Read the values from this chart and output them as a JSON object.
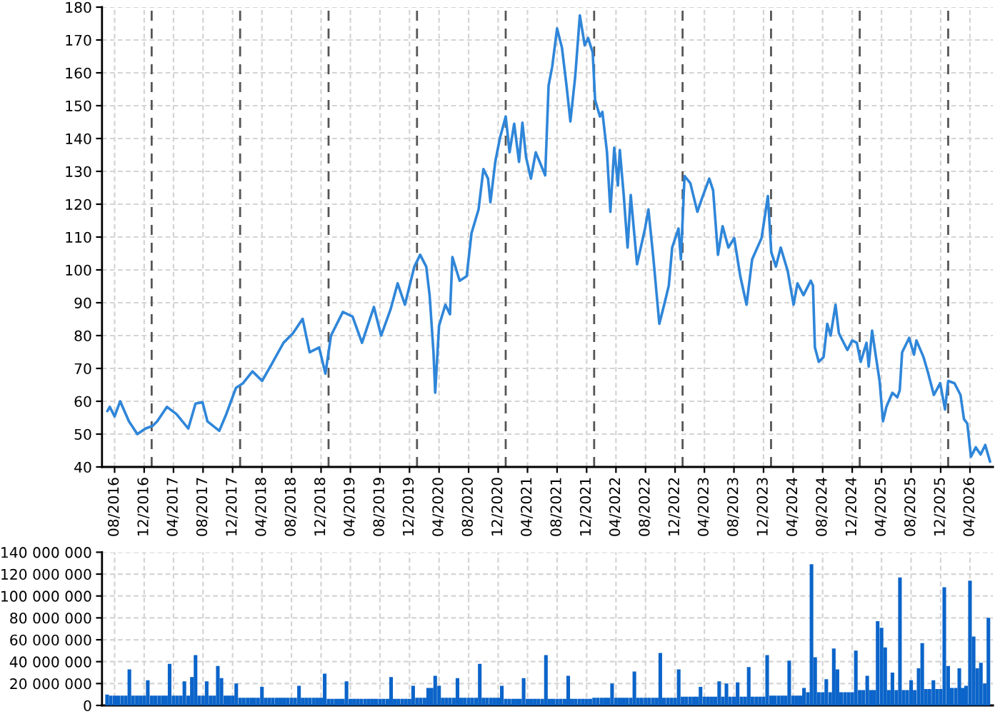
{
  "chart_data": [
    {
      "type": "line",
      "x": [
        "2016-07-02",
        "2016-07-12",
        "2016-08-01",
        "2016-08-24",
        "2016-09-29",
        "2016-11-03",
        "2016-12-06",
        "2017-01-05",
        "2017-01-24",
        "2017-03-05",
        "2017-04-13",
        "2017-06-01",
        "2017-07-01",
        "2017-07-30",
        "2017-08-19",
        "2017-10-07",
        "2017-11-05",
        "2017-12-15",
        "2018-01-13",
        "2018-02-21",
        "2018-04-02",
        "2018-05-11",
        "2018-06-29",
        "2018-08-07",
        "2018-09-16",
        "2018-10-15",
        "2018-11-23",
        "2018-12-19",
        "2019-01-11",
        "2019-03-01",
        "2019-04-10",
        "2019-05-19",
        "2019-07-07",
        "2019-08-06",
        "2019-09-14",
        "2019-10-13",
        "2019-11-12",
        "2019-12-21",
        "2020-01-14",
        "2020-02-08",
        "2020-02-22",
        "2020-03-09",
        "2020-03-16",
        "2020-04-01",
        "2020-04-27",
        "2020-05-16",
        "2020-05-26",
        "2020-06-25",
        "2020-07-24",
        "2020-08-13",
        "2020-09-11",
        "2020-10-01",
        "2020-10-20",
        "2020-10-30",
        "2020-11-19",
        "2020-12-08",
        "2021-01-01",
        "2021-01-17",
        "2021-02-05",
        "2021-02-25",
        "2021-03-11",
        "2021-03-26",
        "2021-04-15",
        "2021-05-05",
        "2021-06-13",
        "2021-06-27",
        "2021-07-12",
        "2021-08-01",
        "2021-08-21",
        "2021-09-09",
        "2021-09-25",
        "2021-10-15",
        "2021-11-03",
        "2021-11-23",
        "2021-12-07",
        "2021-12-26",
        "2022-01-05",
        "2022-01-25",
        "2022-02-04",
        "2022-02-23",
        "2022-03-09",
        "2022-03-25",
        "2022-04-09",
        "2022-04-17",
        "2022-05-03",
        "2022-05-19",
        "2022-06-01",
        "2022-06-27",
        "2022-07-30",
        "2022-08-13",
        "2022-09-02",
        "2022-09-27",
        "2022-10-17",
        "2022-11-05",
        "2022-11-19",
        "2022-12-15",
        "2022-12-25",
        "2023-01-09",
        "2023-02-02",
        "2023-03-03",
        "2023-03-23",
        "2023-04-21",
        "2023-05-07",
        "2023-05-27",
        "2023-06-15",
        "2023-07-09",
        "2023-08-02",
        "2023-08-27",
        "2023-09-22",
        "2023-10-15",
        "2023-11-23",
        "2023-12-19",
        "2024-01-02",
        "2024-01-21",
        "2024-02-10",
        "2024-03-10",
        "2024-04-03",
        "2024-04-19",
        "2024-05-14",
        "2024-06-13",
        "2024-06-22",
        "2024-06-30",
        "2024-07-16",
        "2024-08-05",
        "2024-08-20",
        "2024-09-03",
        "2024-09-23",
        "2024-10-07",
        "2024-11-11",
        "2024-12-01",
        "2024-12-20",
        "2025-01-05",
        "2025-01-29",
        "2025-02-07",
        "2025-02-21",
        "2025-03-09",
        "2025-03-24",
        "2025-04-07",
        "2025-04-21",
        "2025-05-16",
        "2025-06-05",
        "2025-06-15",
        "2025-06-25",
        "2025-07-24",
        "2025-08-13",
        "2025-08-23",
        "2025-09-21",
        "2025-10-11",
        "2025-11-03",
        "2025-11-29",
        "2025-12-19",
        "2026-01-01",
        "2026-01-27",
        "2026-02-21",
        "2026-03-07",
        "2026-03-21",
        "2026-04-05",
        "2026-04-25",
        "2026-05-15",
        "2026-06-03",
        "2026-06-23"
      ],
      "series": [
        {
          "color": "#2f86d9",
          "values": [
            57,
            58.3,
            55.4,
            60,
            53.9,
            50,
            51.7,
            52.5,
            53.9,
            58.3,
            56.1,
            51.7,
            59.3,
            59.7,
            53.9,
            51,
            56.1,
            64.1,
            65.5,
            69.1,
            66.2,
            71.3,
            77.8,
            80.7,
            85.1,
            74.9,
            76.4,
            68.4,
            80,
            87.2,
            85.8,
            77.8,
            88.7,
            80,
            88,
            95.9,
            89.4,
            101,
            104.6,
            101,
            92.3,
            74.9,
            62.6,
            83,
            89.4,
            86.5,
            103.9,
            96.7,
            98.1,
            111.2,
            118.4,
            130.7,
            127.8,
            120.6,
            132.9,
            140.1,
            146.7,
            135.8,
            144.5,
            132.9,
            144.8,
            134.3,
            127.8,
            135.8,
            128.8,
            156.1,
            161.9,
            173.5,
            167.7,
            156.1,
            145.2,
            159,
            177.5,
            168.4,
            170.6,
            166.2,
            151.7,
            146.7,
            148.1,
            135.8,
            117.7,
            137.2,
            125.7,
            136.5,
            122.8,
            106.8,
            122.8,
            101.7,
            112.6,
            118.4,
            103.9,
            83.6,
            89.4,
            95.2,
            106.8,
            112.6,
            103.2,
            128.6,
            126.4,
            117.7,
            122,
            127.8,
            124.2,
            104.6,
            113.3,
            106.8,
            109.7,
            98.1,
            89.4,
            103.2,
            109.7,
            122.5,
            105.4,
            101,
            106.8,
            99.6,
            89.4,
            95.9,
            92.3,
            96.7,
            95.2,
            76.4,
            72,
            73.5,
            83.6,
            80,
            89.4,
            80.7,
            75.6,
            78.5,
            77.8,
            72,
            77.8,
            70.6,
            81.5,
            73.5,
            66.2,
            53.9,
            58.3,
            62.6,
            61.2,
            63.3,
            74.9,
            79.3,
            74.2,
            78.5,
            73.5,
            68.4,
            61.9,
            65.5,
            57.5,
            66.2,
            65.5,
            61.9,
            54.6,
            53.2,
            43.1,
            46,
            43.8,
            46.7,
            41.6
          ]
        }
      ],
      "xlim": [
        "2016-06-10",
        "2026-07-05"
      ],
      "xticks": [
        {
          "value": "2016-08-01",
          "label": "08/2016"
        },
        {
          "value": "2016-12-01",
          "label": "12/2016"
        },
        {
          "value": "2017-04-01",
          "label": "04/2017"
        },
        {
          "value": "2017-08-01",
          "label": "08/2017"
        },
        {
          "value": "2017-12-01",
          "label": "12/2017"
        },
        {
          "value": "2018-04-01",
          "label": "04/2018"
        },
        {
          "value": "2018-08-01",
          "label": "08/2018"
        },
        {
          "value": "2018-12-01",
          "label": "12/2018"
        },
        {
          "value": "2019-04-01",
          "label": "04/2019"
        },
        {
          "value": "2019-08-01",
          "label": "08/2019"
        },
        {
          "value": "2019-12-01",
          "label": "12/2019"
        },
        {
          "value": "2020-04-01",
          "label": "04/2020"
        },
        {
          "value": "2020-08-01",
          "label": "08/2020"
        },
        {
          "value": "2020-12-01",
          "label": "12/2020"
        },
        {
          "value": "2021-04-01",
          "label": "04/2021"
        },
        {
          "value": "2021-08-01",
          "label": "08/2021"
        },
        {
          "value": "2021-12-01",
          "label": "12/2021"
        },
        {
          "value": "2022-04-01",
          "label": "04/2022"
        },
        {
          "value": "2022-08-01",
          "label": "08/2022"
        },
        {
          "value": "2022-12-01",
          "label": "12/2022"
        },
        {
          "value": "2023-04-01",
          "label": "04/2023"
        },
        {
          "value": "2023-08-01",
          "label": "08/2023"
        },
        {
          "value": "2023-12-01",
          "label": "12/2023"
        },
        {
          "value": "2024-04-01",
          "label": "04/2024"
        },
        {
          "value": "2024-08-01",
          "label": "08/2024"
        },
        {
          "value": "2024-12-01",
          "label": "12/2024"
        },
        {
          "value": "2025-04-01",
          "label": "04/2025"
        },
        {
          "value": "2025-08-01",
          "label": "08/2025"
        },
        {
          "value": "2025-12-01",
          "label": "12/2025"
        },
        {
          "value": "2026-04-01",
          "label": "04/2026"
        }
      ],
      "ylim": [
        40,
        180
      ],
      "yticks": [
        40,
        50,
        60,
        70,
        80,
        90,
        100,
        110,
        120,
        130,
        140,
        150,
        160,
        170,
        180
      ],
      "grid": true,
      "ref_lines": [
        {
          "axis": "x",
          "value": "2017-01-01",
          "color": "#555555",
          "line_style": "dashed"
        },
        {
          "axis": "x",
          "value": "2018-01-01",
          "color": "#555555",
          "line_style": "dashed"
        },
        {
          "axis": "x",
          "value": "2019-01-01",
          "color": "#555555",
          "line_style": "dashed"
        },
        {
          "axis": "x",
          "value": "2020-01-01",
          "color": "#555555",
          "line_style": "dashed"
        },
        {
          "axis": "x",
          "value": "2021-01-01",
          "color": "#555555",
          "line_style": "dashed"
        },
        {
          "axis": "x",
          "value": "2022-01-01",
          "color": "#555555",
          "line_style": "dashed"
        },
        {
          "axis": "x",
          "value": "2023-01-01",
          "color": "#555555",
          "line_style": "dashed"
        },
        {
          "axis": "x",
          "value": "2024-01-01",
          "color": "#555555",
          "line_style": "dashed"
        },
        {
          "axis": "x",
          "value": "2025-01-01",
          "color": "#555555",
          "line_style": "dashed"
        },
        {
          "axis": "x",
          "value": "2026-01-01",
          "color": "#555555",
          "line_style": "dashed"
        }
      ]
    },
    {
      "type": "bar",
      "x": [
        "2016-07-01",
        "2016-07-16",
        "2016-08-01",
        "2016-08-16",
        "2016-09-01",
        "2016-09-16",
        "2016-10-01",
        "2016-10-16",
        "2016-11-01",
        "2016-11-16",
        "2016-12-01",
        "2016-12-16",
        "2017-01-01",
        "2017-01-16",
        "2017-02-01",
        "2017-02-16",
        "2017-03-01",
        "2017-03-16",
        "2017-04-01",
        "2017-04-16",
        "2017-05-01",
        "2017-05-16",
        "2017-06-01",
        "2017-06-16",
        "2017-07-01",
        "2017-07-16",
        "2017-08-01",
        "2017-08-16",
        "2017-09-01",
        "2017-09-16",
        "2017-10-01",
        "2017-10-16",
        "2017-11-01",
        "2017-11-16",
        "2017-12-01",
        "2017-12-16",
        "2018-01-01",
        "2018-01-16",
        "2018-02-01",
        "2018-02-16",
        "2018-03-01",
        "2018-03-16",
        "2018-04-01",
        "2018-04-16",
        "2018-05-01",
        "2018-05-16",
        "2018-06-01",
        "2018-06-16",
        "2018-07-01",
        "2018-07-16",
        "2018-08-01",
        "2018-08-16",
        "2018-09-01",
        "2018-09-16",
        "2018-10-01",
        "2018-10-16",
        "2018-11-01",
        "2018-11-16",
        "2018-12-01",
        "2018-12-16",
        "2019-01-01",
        "2019-01-16",
        "2019-02-01",
        "2019-02-16",
        "2019-03-01",
        "2019-03-16",
        "2019-04-01",
        "2019-04-16",
        "2019-05-01",
        "2019-05-16",
        "2019-06-01",
        "2019-06-16",
        "2019-07-01",
        "2019-07-16",
        "2019-08-01",
        "2019-08-16",
        "2019-09-01",
        "2019-09-16",
        "2019-10-01",
        "2019-10-16",
        "2019-11-01",
        "2019-11-16",
        "2019-12-01",
        "2019-12-16",
        "2020-01-01",
        "2020-01-16",
        "2020-02-01",
        "2020-02-16",
        "2020-03-01",
        "2020-03-16",
        "2020-04-01",
        "2020-04-16",
        "2020-05-01",
        "2020-05-16",
        "2020-06-01",
        "2020-06-16",
        "2020-07-01",
        "2020-07-16",
        "2020-08-01",
        "2020-08-16",
        "2020-09-01",
        "2020-09-16",
        "2020-10-01",
        "2020-10-16",
        "2020-11-01",
        "2020-11-16",
        "2020-12-01",
        "2020-12-16",
        "2021-01-01",
        "2021-01-16",
        "2021-02-01",
        "2021-02-16",
        "2021-03-01",
        "2021-03-16",
        "2021-04-01",
        "2021-04-16",
        "2021-05-01",
        "2021-05-16",
        "2021-06-01",
        "2021-06-16",
        "2021-07-01",
        "2021-07-16",
        "2021-08-01",
        "2021-08-16",
        "2021-09-01",
        "2021-09-16",
        "2021-10-01",
        "2021-10-16",
        "2021-11-01",
        "2021-11-16",
        "2021-12-01",
        "2021-12-16",
        "2022-01-01",
        "2022-01-16",
        "2022-02-01",
        "2022-02-16",
        "2022-03-01",
        "2022-03-16",
        "2022-04-01",
        "2022-04-16",
        "2022-05-01",
        "2022-05-16",
        "2022-06-01",
        "2022-06-16",
        "2022-07-01",
        "2022-07-16",
        "2022-08-01",
        "2022-08-16",
        "2022-09-01",
        "2022-09-16",
        "2022-10-01",
        "2022-10-16",
        "2022-11-01",
        "2022-11-16",
        "2022-12-01",
        "2022-12-16",
        "2023-01-01",
        "2023-01-16",
        "2023-02-01",
        "2023-02-16",
        "2023-03-01",
        "2023-03-16",
        "2023-04-01",
        "2023-04-16",
        "2023-05-01",
        "2023-05-16",
        "2023-06-01",
        "2023-06-16",
        "2023-07-01",
        "2023-07-16",
        "2023-08-01",
        "2023-08-16",
        "2023-09-01",
        "2023-09-16",
        "2023-10-01",
        "2023-10-16",
        "2023-11-01",
        "2023-11-16",
        "2023-12-01",
        "2023-12-16",
        "2024-01-01",
        "2024-01-16",
        "2024-02-01",
        "2024-02-16",
        "2024-03-01",
        "2024-03-16",
        "2024-04-01",
        "2024-04-16",
        "2024-05-01",
        "2024-05-16",
        "2024-06-01",
        "2024-06-16",
        "2024-07-01",
        "2024-07-16",
        "2024-08-01",
        "2024-08-16",
        "2024-09-01",
        "2024-09-16",
        "2024-10-01",
        "2024-10-16",
        "2024-11-01",
        "2024-11-16",
        "2024-12-01",
        "2024-12-16",
        "2025-01-01",
        "2025-01-16",
        "2025-02-01",
        "2025-02-16",
        "2025-03-01",
        "2025-03-16",
        "2025-04-01",
        "2025-04-16",
        "2025-05-01",
        "2025-05-16",
        "2025-06-01",
        "2025-06-16",
        "2025-07-01",
        "2025-07-16",
        "2025-08-01",
        "2025-08-16",
        "2025-09-01",
        "2025-09-16",
        "2025-10-01",
        "2025-10-16",
        "2025-11-01",
        "2025-11-16",
        "2025-12-01",
        "2025-12-16",
        "2026-01-01",
        "2026-01-16",
        "2026-02-01",
        "2026-02-16",
        "2026-03-01",
        "2026-03-16",
        "2026-04-01",
        "2026-04-16",
        "2026-05-01",
        "2026-05-16",
        "2026-06-01",
        "2026-06-16"
      ],
      "series": [
        {
          "color": "#0b64c9",
          "values": [
            10000000,
            9000000,
            9000000,
            9000000,
            9000000,
            9000000,
            33000000,
            9000000,
            9000000,
            9000000,
            9000000,
            23000000,
            9000000,
            9000000,
            9000000,
            9000000,
            9000000,
            38000000,
            9000000,
            9000000,
            9000000,
            22000000,
            9000000,
            26000000,
            46000000,
            9000000,
            9000000,
            22000000,
            9000000,
            9000000,
            36000000,
            25000000,
            9000000,
            9000000,
            9000000,
            20000000,
            7000000,
            7000000,
            7000000,
            7000000,
            7000000,
            7000000,
            17000000,
            7000000,
            7000000,
            7000000,
            7000000,
            7000000,
            7000000,
            7000000,
            7000000,
            7000000,
            18000000,
            7000000,
            7000000,
            7000000,
            7000000,
            7000000,
            7000000,
            29000000,
            6000000,
            6000000,
            6000000,
            6000000,
            6000000,
            22000000,
            6000000,
            6000000,
            6000000,
            6000000,
            6000000,
            6000000,
            6000000,
            6000000,
            6000000,
            6000000,
            6000000,
            26000000,
            6000000,
            6000000,
            6000000,
            6000000,
            6000000,
            18000000,
            7000000,
            7000000,
            7000000,
            16000000,
            16000000,
            27000000,
            18000000,
            7000000,
            7000000,
            7000000,
            7000000,
            25000000,
            7000000,
            7000000,
            7000000,
            7000000,
            7000000,
            38000000,
            7000000,
            7000000,
            7000000,
            7000000,
            7000000,
            18000000,
            6000000,
            6000000,
            6000000,
            6000000,
            6000000,
            25000000,
            6000000,
            6000000,
            6000000,
            6000000,
            6000000,
            46000000,
            6000000,
            6000000,
            6000000,
            6000000,
            6000000,
            27000000,
            6000000,
            6000000,
            6000000,
            6000000,
            6000000,
            6000000,
            7000000,
            7000000,
            7000000,
            7000000,
            7000000,
            20000000,
            7000000,
            7000000,
            7000000,
            7000000,
            7000000,
            31000000,
            7000000,
            7000000,
            7000000,
            7000000,
            7000000,
            7000000,
            48000000,
            7000000,
            7000000,
            7000000,
            7000000,
            33000000,
            8000000,
            8000000,
            8000000,
            8000000,
            8000000,
            17000000,
            8000000,
            8000000,
            8000000,
            8000000,
            22000000,
            8000000,
            20000000,
            8000000,
            8000000,
            21000000,
            8000000,
            8000000,
            35000000,
            8000000,
            8000000,
            8000000,
            8000000,
            46000000,
            9000000,
            9000000,
            9000000,
            9000000,
            9000000,
            41000000,
            9000000,
            9000000,
            9000000,
            16000000,
            12000000,
            129000000,
            44000000,
            12000000,
            12000000,
            24000000,
            12000000,
            52000000,
            33000000,
            12000000,
            12000000,
            12000000,
            12000000,
            50000000,
            14000000,
            14000000,
            27000000,
            14000000,
            14000000,
            77000000,
            71000000,
            53000000,
            14000000,
            30000000,
            14000000,
            117000000,
            14000000,
            14000000,
            23000000,
            14000000,
            34000000,
            57000000,
            15000000,
            15000000,
            23000000,
            15000000,
            15000000,
            108000000,
            36000000,
            16000000,
            16000000,
            34000000,
            16000000,
            18000000,
            114000000,
            63000000,
            34000000,
            39000000,
            20000000,
            80000000
          ]
        }
      ],
      "xlim": [
        "2016-06-10",
        "2026-07-05"
      ],
      "xticks": [
        {
          "value": "2016-08-01",
          "label": null
        },
        {
          "value": "2016-12-01",
          "label": null
        },
        {
          "value": "2017-04-01",
          "label": null
        },
        {
          "value": "2017-08-01",
          "label": null
        },
        {
          "value": "2017-12-01",
          "label": null
        },
        {
          "value": "2018-04-01",
          "label": null
        },
        {
          "value": "2018-08-01",
          "label": null
        },
        {
          "value": "2018-12-01",
          "label": null
        },
        {
          "value": "2019-04-01",
          "label": null
        },
        {
          "value": "2019-08-01",
          "label": null
        },
        {
          "value": "2019-12-01",
          "label": null
        },
        {
          "value": "2020-04-01",
          "label": null
        },
        {
          "value": "2020-08-01",
          "label": null
        },
        {
          "value": "2020-12-01",
          "label": null
        },
        {
          "value": "2021-04-01",
          "label": null
        },
        {
          "value": "2021-08-01",
          "label": null
        },
        {
          "value": "2021-12-01",
          "label": null
        },
        {
          "value": "2022-04-01",
          "label": null
        },
        {
          "value": "2022-08-01",
          "label": null
        },
        {
          "value": "2022-12-01",
          "label": null
        },
        {
          "value": "2023-04-01",
          "label": null
        },
        {
          "value": "2023-08-01",
          "label": null
        },
        {
          "value": "2023-12-01",
          "label": null
        },
        {
          "value": "2024-04-01",
          "label": null
        },
        {
          "value": "2024-08-01",
          "label": null
        },
        {
          "value": "2024-12-01",
          "label": null
        },
        {
          "value": "2025-04-01",
          "label": null
        },
        {
          "value": "2025-08-01",
          "label": null
        },
        {
          "value": "2025-12-01",
          "label": null
        },
        {
          "value": "2026-04-01",
          "label": null
        }
      ],
      "ylim": [
        0,
        140000000
      ],
      "yticks": [
        0,
        {
          "value": 20000000,
          "label": "20 000 000"
        },
        {
          "value": 40000000,
          "label": "40 000 000"
        },
        {
          "value": 60000000,
          "label": "60 000 000"
        },
        {
          "value": 80000000,
          "label": "80 000 000"
        },
        {
          "value": 100000000,
          "label": "100 000 000"
        },
        {
          "value": 120000000,
          "label": "120 000 000"
        },
        {
          "value": 140000000,
          "label": "140 000 000"
        }
      ],
      "grid": true,
      "tick_labels": "y"
    }
  ]
}
